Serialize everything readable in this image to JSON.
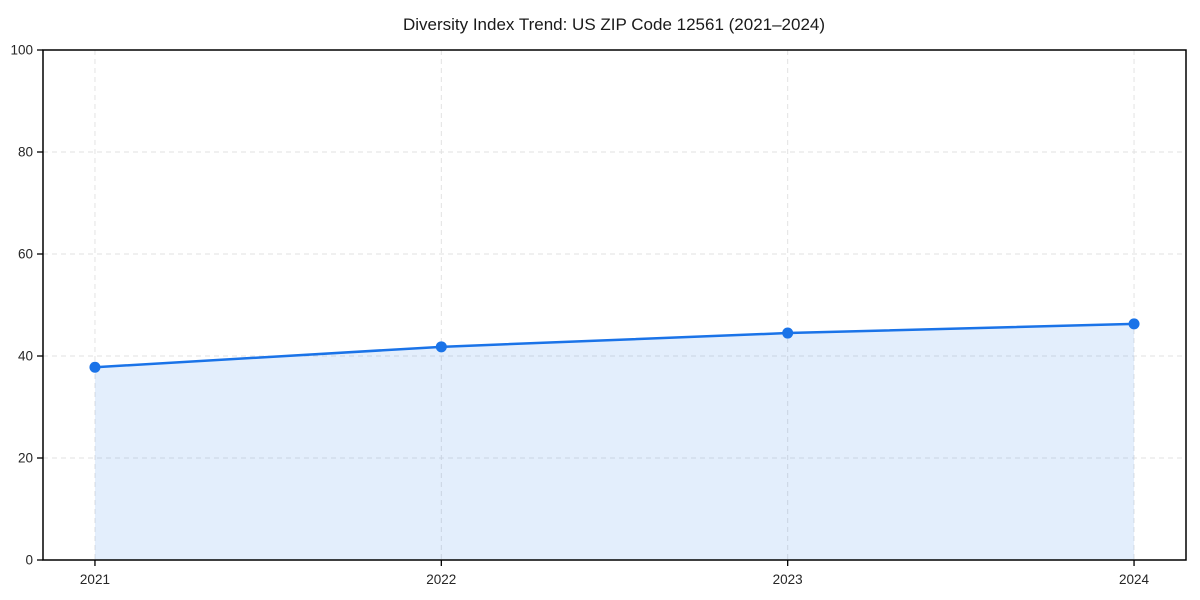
{
  "chart_data": {
    "type": "area",
    "title": "Diversity Index Trend: US ZIP Code 12561 (2021–2024)",
    "x": [
      2021,
      2022,
      2023,
      2024
    ],
    "series": [
      {
        "name": "Diversity Index",
        "values": [
          37.8,
          41.8,
          44.5,
          46.3
        ]
      }
    ],
    "xlabel": "",
    "ylabel": "",
    "xlim": [
      2020.85,
      2024.15
    ],
    "ylim": [
      0,
      100
    ],
    "yticks": [
      0,
      20,
      40,
      60,
      80,
      100
    ],
    "xticks": [
      2021,
      2022,
      2023,
      2024
    ],
    "grid": true,
    "grid_style": "dashed",
    "legend": false,
    "colors": {
      "line": "#1a73e8",
      "marker": "#1a73e8",
      "fill": "#1a73e8",
      "fill_opacity": 0.12,
      "grid": "#e2e2e2",
      "axis": "#000000",
      "title_text": "#1a1a1a",
      "tick_text": "#262626",
      "background": "#ffffff"
    }
  }
}
